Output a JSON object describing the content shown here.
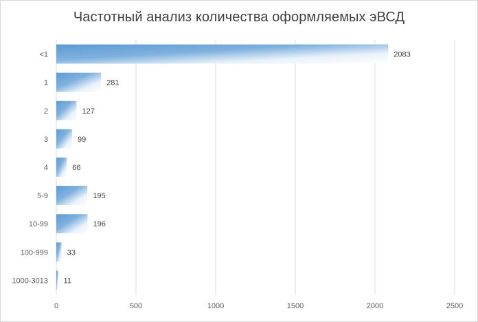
{
  "chart_data": {
    "type": "bar",
    "orientation": "horizontal",
    "title": "Частотный анализ количества оформляемых эВСД",
    "categories": [
      "<1",
      "1",
      "2",
      "3",
      "4",
      "5-9",
      "10-99",
      "100-999",
      "1000-3013"
    ],
    "values": [
      2083,
      281,
      127,
      99,
      66,
      195,
      196,
      33,
      11
    ],
    "xlim": [
      0,
      2500
    ],
    "x_ticks": [
      0,
      500,
      1000,
      1500,
      2000,
      2500
    ],
    "grid": true,
    "legend": "none",
    "bar_color": "#5b9bd5",
    "data_labels": true
  }
}
